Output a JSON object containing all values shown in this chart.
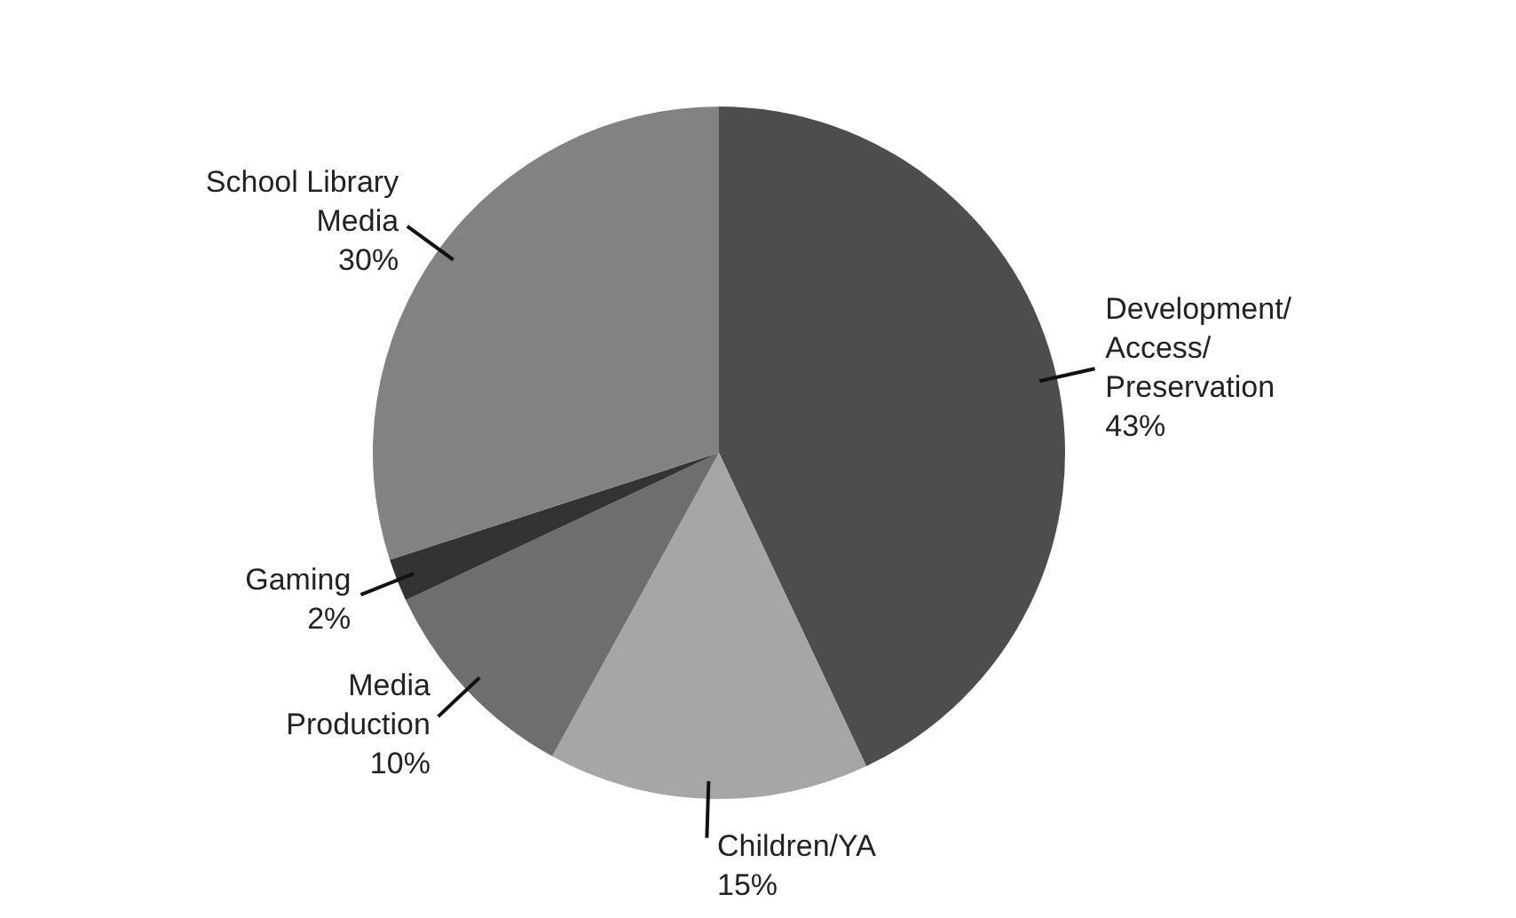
{
  "chart_data": {
    "type": "pie",
    "categories": [
      "Development/\nAccess/\nPreservation",
      "Children/YA",
      "Media\nProduction",
      "Gaming",
      "School Library\nMedia"
    ],
    "values": [
      43,
      15,
      10,
      2,
      30
    ],
    "value_labels": [
      "43%",
      "15%",
      "10%",
      "2%",
      "30%"
    ],
    "colors": [
      "#4d4d4d",
      "#a6a6a6",
      "#6e6e6e",
      "#333333",
      "#828282"
    ],
    "legend": false
  }
}
